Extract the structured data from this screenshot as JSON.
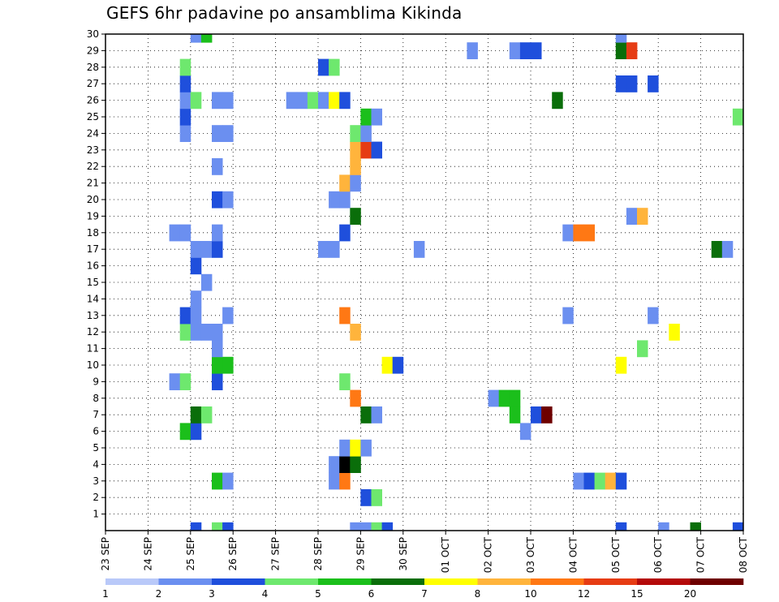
{
  "chart_data": {
    "type": "heatmap",
    "title": "GEFS 6hr padavine po ansamblima Kikinda",
    "x_tick_labels": [
      "23 SEP",
      "24 SEP",
      "25 SEP",
      "26 SEP",
      "27 SEP",
      "28 SEP",
      "29 SEP",
      "30 SEP",
      "01 OCT",
      "02 OCT",
      "03 OCT",
      "04 OCT",
      "05 OCT",
      "06 OCT",
      "07 OCT",
      "08 OCT"
    ],
    "y_tick_labels": [
      "1",
      "2",
      "3",
      "4",
      "5",
      "6",
      "7",
      "8",
      "9",
      "10",
      "11",
      "12",
      "13",
      "14",
      "15",
      "16",
      "17",
      "18",
      "19",
      "20",
      "21",
      "22",
      "23",
      "24",
      "25",
      "26",
      "27",
      "28",
      "29",
      "30"
    ],
    "x_unit": "6-hour steps",
    "xlim": [
      0,
      60
    ],
    "ylim": [
      0,
      30
    ],
    "grid": true,
    "colorbar": {
      "labels": [
        "1",
        "2",
        "3",
        "4",
        "5",
        "6",
        "7",
        "8",
        "10",
        "12",
        "15",
        "20"
      ],
      "colors": [
        "#b9c9f9",
        "#6b8ff0",
        "#1f4fdc",
        "#6ee86e",
        "#1bbf1b",
        "#0a6e0a",
        "#ffff00",
        "#ffb43c",
        "#ff7814",
        "#e63c14",
        "#b40a0a",
        "#6e0000"
      ]
    },
    "cells": [
      [
        8.5,
        0,
        2
      ],
      [
        10.5,
        0,
        3
      ],
      [
        11.5,
        0,
        2
      ],
      [
        23.5,
        0,
        1
      ],
      [
        24.5,
        0,
        1
      ],
      [
        25.5,
        0,
        3
      ],
      [
        26.5,
        0,
        2
      ],
      [
        48.5,
        0,
        2
      ],
      [
        52.5,
        0,
        1
      ],
      [
        55.5,
        0,
        5
      ],
      [
        59.5,
        0,
        2
      ],
      [
        24.5,
        2,
        2
      ],
      [
        25.5,
        2,
        3
      ],
      [
        10.5,
        3,
        4
      ],
      [
        11.5,
        3,
        1
      ],
      [
        21.5,
        3,
        1
      ],
      [
        22.5,
        3,
        8
      ],
      [
        44.5,
        3,
        1
      ],
      [
        45.5,
        3,
        2
      ],
      [
        46.5,
        3,
        3
      ],
      [
        47.5,
        3,
        7
      ],
      [
        48.5,
        3,
        2
      ],
      [
        21.5,
        4,
        1
      ],
      [
        22.5,
        4,
        12
      ],
      [
        23.5,
        4,
        5
      ],
      [
        22.5,
        5,
        1
      ],
      [
        23.5,
        5,
        6
      ],
      [
        24.5,
        5,
        1
      ],
      [
        7.5,
        6,
        4
      ],
      [
        8.5,
        6,
        2
      ],
      [
        39.5,
        6,
        1
      ],
      [
        8.5,
        7,
        5
      ],
      [
        9.5,
        7,
        3
      ],
      [
        24.5,
        7,
        5
      ],
      [
        25.5,
        7,
        1
      ],
      [
        38.5,
        7,
        4
      ],
      [
        40.5,
        7,
        2
      ],
      [
        41.5,
        7,
        11
      ],
      [
        23.5,
        8,
        8
      ],
      [
        36.5,
        8,
        1
      ],
      [
        37.5,
        8,
        4
      ],
      [
        38.5,
        8,
        4
      ],
      [
        6.5,
        9,
        1
      ],
      [
        7.5,
        9,
        3
      ],
      [
        10.5,
        9,
        2
      ],
      [
        22.5,
        9,
        3
      ],
      [
        10.5,
        10,
        4
      ],
      [
        11.5,
        10,
        4
      ],
      [
        26.5,
        10,
        6
      ],
      [
        27.5,
        10,
        2
      ],
      [
        48.5,
        10,
        6
      ],
      [
        10.5,
        11,
        1
      ],
      [
        50.5,
        11,
        3
      ],
      [
        7.5,
        12,
        3
      ],
      [
        8.5,
        12,
        1
      ],
      [
        9.5,
        12,
        1
      ],
      [
        10.5,
        12,
        1
      ],
      [
        23.5,
        12,
        7
      ],
      [
        53.5,
        12,
        6
      ],
      [
        7.5,
        13,
        2
      ],
      [
        8.5,
        13,
        1
      ],
      [
        11.5,
        13,
        1
      ],
      [
        22.5,
        13,
        8
      ],
      [
        43.5,
        13,
        1
      ],
      [
        51.5,
        13,
        1
      ],
      [
        8.5,
        14,
        1
      ],
      [
        9.5,
        15,
        1
      ],
      [
        8.5,
        16,
        2
      ],
      [
        8.5,
        17,
        1
      ],
      [
        9.5,
        17,
        1
      ],
      [
        10.5,
        17,
        2
      ],
      [
        20.5,
        17,
        1
      ],
      [
        21.5,
        17,
        1
      ],
      [
        29.5,
        17,
        1
      ],
      [
        57.5,
        17,
        5
      ],
      [
        58.5,
        17,
        1
      ],
      [
        6.5,
        18,
        1
      ],
      [
        7.5,
        18,
        1
      ],
      [
        10.5,
        18,
        1
      ],
      [
        22.5,
        18,
        2
      ],
      [
        43.5,
        18,
        1
      ],
      [
        44.5,
        18,
        8
      ],
      [
        45.5,
        18,
        8
      ],
      [
        23.5,
        19,
        5
      ],
      [
        49.5,
        19,
        1
      ],
      [
        50.5,
        19,
        7
      ],
      [
        10.5,
        20,
        2
      ],
      [
        11.5,
        20,
        1
      ],
      [
        21.5,
        20,
        1
      ],
      [
        22.5,
        20,
        1
      ],
      [
        22.5,
        21,
        7
      ],
      [
        23.5,
        21,
        1
      ],
      [
        10.5,
        22,
        1
      ],
      [
        23.5,
        22,
        7
      ],
      [
        23.5,
        23,
        7
      ],
      [
        24.5,
        23,
        9
      ],
      [
        25.5,
        23,
        2
      ],
      [
        7.5,
        24,
        1
      ],
      [
        10.5,
        24,
        1
      ],
      [
        11.5,
        24,
        1
      ],
      [
        23.5,
        24,
        3
      ],
      [
        24.5,
        24,
        1
      ],
      [
        7.5,
        25,
        2
      ],
      [
        24.5,
        25,
        4
      ],
      [
        25.5,
        25,
        1
      ],
      [
        59.5,
        25,
        3
      ],
      [
        7.5,
        26,
        1
      ],
      [
        8.5,
        26,
        3
      ],
      [
        10.5,
        26,
        1
      ],
      [
        11.5,
        26,
        1
      ],
      [
        17.5,
        26,
        1
      ],
      [
        18.5,
        26,
        1
      ],
      [
        19.5,
        26,
        3
      ],
      [
        20.5,
        26,
        1
      ],
      [
        21.5,
        26,
        6
      ],
      [
        22.5,
        26,
        2
      ],
      [
        42.5,
        26,
        5
      ],
      [
        7.5,
        27,
        2
      ],
      [
        48.5,
        27,
        2
      ],
      [
        49.5,
        27,
        2
      ],
      [
        51.5,
        27,
        2
      ],
      [
        7.5,
        28,
        3
      ],
      [
        20.5,
        28,
        2
      ],
      [
        21.5,
        28,
        3
      ],
      [
        34.5,
        29,
        1
      ],
      [
        38.5,
        29,
        1
      ],
      [
        39.5,
        29,
        2
      ],
      [
        40.5,
        29,
        2
      ],
      [
        48.5,
        29,
        5
      ],
      [
        49.5,
        29,
        9
      ],
      [
        8.5,
        30,
        1
      ],
      [
        9.5,
        30,
        4
      ],
      [
        48.5,
        30,
        1
      ]
    ]
  }
}
